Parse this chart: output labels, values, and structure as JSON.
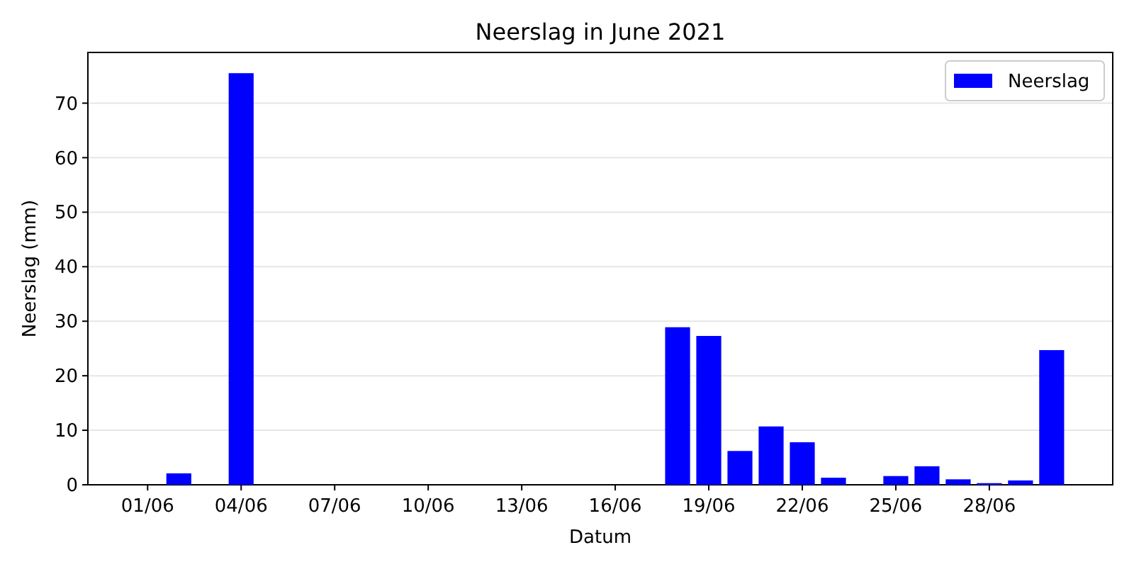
{
  "chart_data": {
    "type": "bar",
    "title": "Neerslag in June 2021",
    "xlabel": "Datum",
    "ylabel": "Neerslag (mm)",
    "x": [
      "2021-06-02",
      "2021-06-04",
      "2021-06-18",
      "2021-06-19",
      "2021-06-20",
      "2021-06-21",
      "2021-06-22",
      "2021-06-23",
      "2021-06-25",
      "2021-06-26",
      "2021-06-27",
      "2021-06-28",
      "2021-06-29",
      "2021-06-30"
    ],
    "series": [
      {
        "name": "Neerslag",
        "color": "#0000ff",
        "values": [
          2.1,
          75.5,
          28.9,
          27.3,
          6.2,
          10.7,
          7.8,
          1.3,
          1.6,
          3.4,
          1.0,
          0.3,
          0.8,
          24.7
        ]
      }
    ],
    "xlim": [
      "2021-05-30T02:00",
      "2021-07-01T23:00"
    ],
    "xticks": [
      {
        "value": "2021-06-01",
        "label": "01/06"
      },
      {
        "value": "2021-06-04",
        "label": "04/06"
      },
      {
        "value": "2021-06-07",
        "label": "07/06"
      },
      {
        "value": "2021-06-10",
        "label": "10/06"
      },
      {
        "value": "2021-06-13",
        "label": "13/06"
      },
      {
        "value": "2021-06-16",
        "label": "16/06"
      },
      {
        "value": "2021-06-19",
        "label": "19/06"
      },
      {
        "value": "2021-06-22",
        "label": "22/06"
      },
      {
        "value": "2021-06-25",
        "label": "25/06"
      },
      {
        "value": "2021-06-28",
        "label": "28/06"
      }
    ],
    "ylim": [
      0,
      79.3
    ],
    "yticks": [
      0,
      10,
      20,
      30,
      40,
      50,
      60,
      70
    ],
    "grid": "y",
    "legend": "top right"
  }
}
